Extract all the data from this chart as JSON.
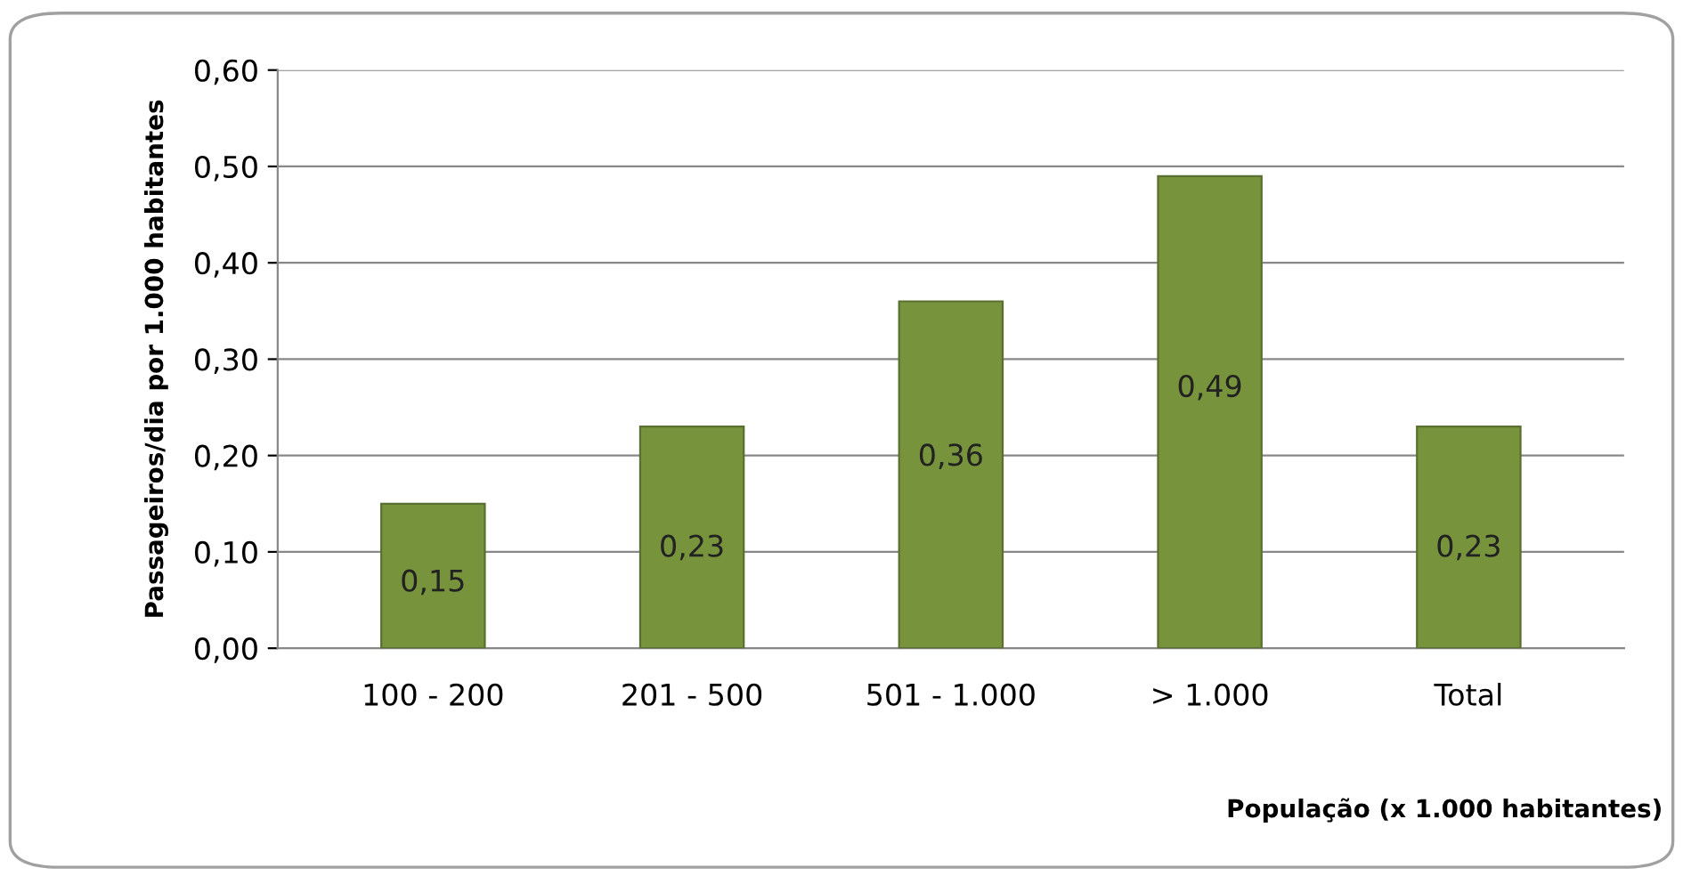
{
  "chart_data": {
    "type": "bar",
    "xlabel": "População (x 1.000 habitantes)",
    "ylabel": "Passageiros/dia por 1.000 habitantes",
    "categories": [
      "100 - 200",
      "201 - 500",
      "501 - 1.000",
      "> 1.000",
      "Total"
    ],
    "values": [
      0.15,
      0.23,
      0.36,
      0.49,
      0.23
    ],
    "color": "#77933c",
    "value_labels": [
      "0,15",
      "0,23",
      "0,36",
      "0,49",
      "0,23"
    ],
    "ylim": [
      0,
      0.6
    ],
    "yticks": [
      {
        "value": 0,
        "label": "0,00"
      },
      {
        "value": 0.1,
        "label": "0,10"
      },
      {
        "value": 0.2,
        "label": "0,20"
      },
      {
        "value": 0.3,
        "label": "0,30"
      },
      {
        "value": 0.4,
        "label": "0,40"
      },
      {
        "value": 0.5,
        "label": "0,50"
      },
      {
        "value": 0.6,
        "label": "0,60"
      }
    ],
    "grid": "y",
    "legend": false
  }
}
